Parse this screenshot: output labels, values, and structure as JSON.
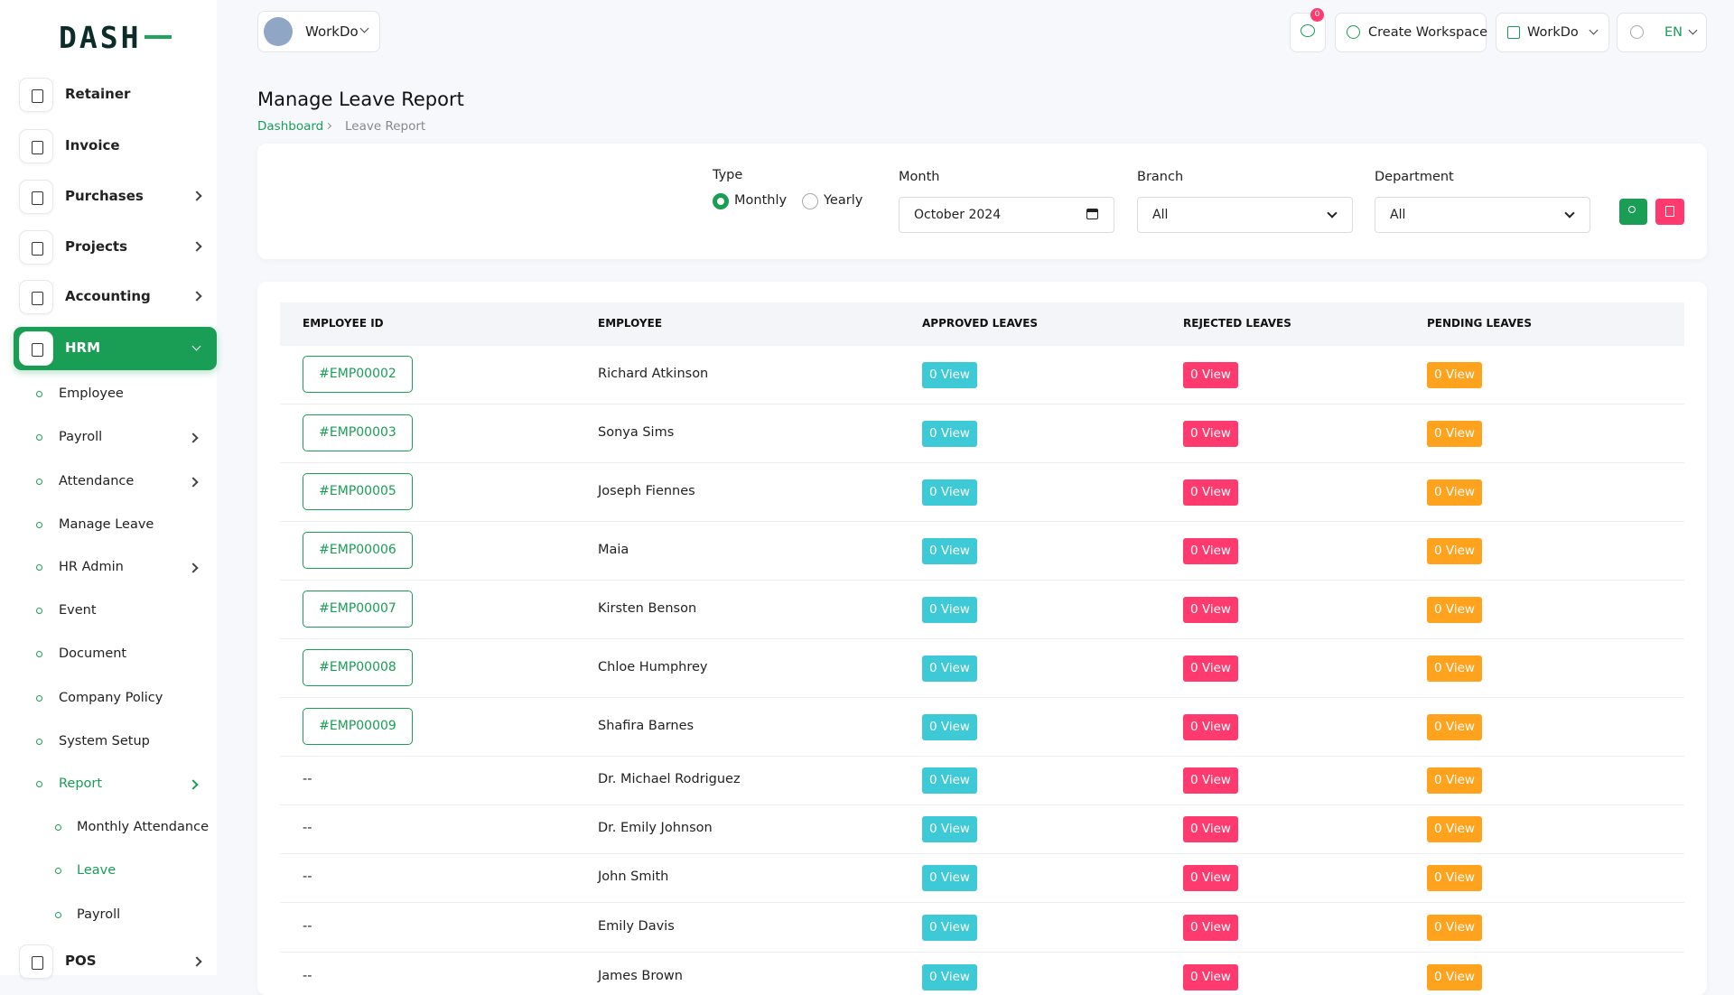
{
  "logo": "DASH",
  "sidebar": {
    "items": [
      {
        "label": "Retainer",
        "arrow": false
      },
      {
        "label": "Invoice",
        "arrow": false
      },
      {
        "label": "Purchases",
        "arrow": true
      },
      {
        "label": "Projects",
        "arrow": true
      },
      {
        "label": "Accounting",
        "arrow": true
      },
      {
        "label": "HRM",
        "arrow": true,
        "active": true
      }
    ],
    "hrm_items": [
      {
        "label": "Employee",
        "arrow": false
      },
      {
        "label": "Payroll",
        "arrow": true
      },
      {
        "label": "Attendance",
        "arrow": true
      },
      {
        "label": "Manage Leave",
        "arrow": false
      },
      {
        "label": "HR Admin",
        "arrow": true
      },
      {
        "label": "Event",
        "arrow": false
      },
      {
        "label": "Document",
        "arrow": false
      },
      {
        "label": "Company Policy",
        "arrow": false
      },
      {
        "label": "System Setup",
        "arrow": false
      },
      {
        "label": "Report",
        "arrow": true,
        "active": true
      }
    ],
    "report_items": [
      {
        "label": "Monthly Attendance",
        "active": false
      },
      {
        "label": "Leave",
        "active": true
      },
      {
        "label": "Payroll",
        "active": false
      }
    ],
    "bottom_item": {
      "label": "POS",
      "arrow": true
    }
  },
  "header": {
    "workspace": "WorkDo",
    "notifications": 0,
    "create_workspace": "Create Workspace",
    "company": "WorkDo",
    "language": "EN"
  },
  "page": {
    "title": "Manage Leave Report",
    "breadcrumb": [
      "Dashboard",
      "Leave Report"
    ]
  },
  "filters": {
    "type_label": "Type",
    "type_options": [
      "Monthly",
      "Yearly"
    ],
    "type_selected": 0,
    "month_label": "Month",
    "month_value": "October 2024",
    "branch_label": "Branch",
    "branch_value": "All",
    "department_label": "Department",
    "department_value": "All"
  },
  "table": {
    "headers": [
      "EMPLOYEE ID",
      "EMPLOYEE",
      "APPROVED LEAVES",
      "REJECTED LEAVES",
      "PENDING LEAVES"
    ],
    "rows": [
      [
        "#EMP00002",
        "Richard Atkinson",
        "0 View",
        "0 View",
        "0 View"
      ],
      [
        "#EMP00003",
        "Sonya Sims",
        "0 View",
        "0 View",
        "0 View"
      ],
      [
        "#EMP00005",
        "Joseph Fiennes",
        "0 View",
        "0 View",
        "0 View"
      ],
      [
        "#EMP00006",
        "Maia",
        "0 View",
        "0 View",
        "0 View"
      ],
      [
        "#EMP00007",
        "Kirsten Benson",
        "0 View",
        "0 View",
        "0 View"
      ],
      [
        "#EMP00008",
        "Chloe Humphrey",
        "0 View",
        "0 View",
        "0 View"
      ],
      [
        "#EMP00009",
        "Shafira Barnes",
        "0 View",
        "0 View",
        "0 View"
      ],
      [
        "--",
        "Dr. Michael Rodriguez",
        "0 View",
        "0 View",
        "0 View"
      ],
      [
        "--",
        "Dr. Emily Johnson",
        "0 View",
        "0 View",
        "0 View"
      ],
      [
        "--",
        "John Smith",
        "0 View",
        "0 View",
        "0 View"
      ],
      [
        "--",
        "Emily Davis",
        "0 View",
        "0 View",
        "0 View"
      ],
      [
        "--",
        "James Brown",
        "0 View",
        "0 View",
        "0 View"
      ]
    ]
  }
}
